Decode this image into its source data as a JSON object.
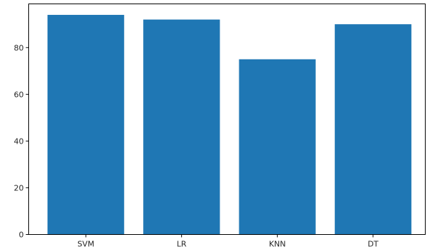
{
  "chart_data": {
    "type": "bar",
    "categories": [
      "SVM",
      "LR",
      "KNN",
      "DT"
    ],
    "values": [
      94,
      92,
      75,
      90
    ],
    "ylim": [
      0,
      98.7
    ],
    "yticks": [
      0,
      20,
      40,
      60,
      80
    ],
    "bar_color": "#1f77b4",
    "grid": false,
    "title": "",
    "xlabel": "",
    "ylabel": ""
  }
}
